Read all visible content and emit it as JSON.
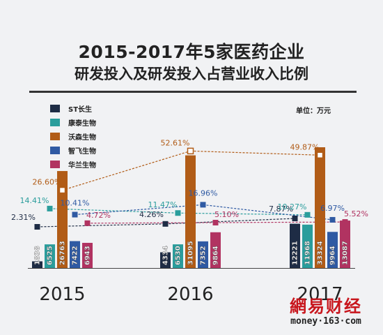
{
  "title_line1": "2015-2017年5家医药企业",
  "title_line2": "研发投入及研发投入占营业收入比例",
  "unit_label": "单位：万元",
  "logo": {
    "main": "網易财经",
    "sub": "money·163·com"
  },
  "chart_data": {
    "type": "bar",
    "categories": [
      "2015",
      "2016",
      "2017"
    ],
    "series": [
      {
        "name": "ST长生",
        "color": "#1e2c45",
        "values": [
          1838,
          4334,
          12221
        ],
        "ratio_labels": [
          "2.31%",
          "4.26%",
          "7.87%"
        ]
      },
      {
        "name": "康泰生物",
        "color": "#2a9d9c",
        "values": [
          6525,
          6530,
          11968
        ],
        "ratio_labels": [
          "14.41%",
          "11.47%",
          "10.27%"
        ]
      },
      {
        "name": "沃森生物",
        "color": "#b15c17",
        "values": [
          26763,
          31095,
          33324
        ],
        "ratio_labels": [
          "26.60%",
          "52.61%",
          "49.87%"
        ]
      },
      {
        "name": "智飞生物",
        "color": "#2f5aa3",
        "values": [
          7422,
          7352,
          9964
        ],
        "ratio_labels": [
          "10.41%",
          "16.96%",
          "6.97%"
        ]
      },
      {
        "name": "华兰生物",
        "color": "#b13361",
        "values": [
          6943,
          9864,
          13087
        ],
        "ratio_labels": [
          "4.72%",
          "5.10%",
          "5.52%"
        ]
      }
    ]
  }
}
